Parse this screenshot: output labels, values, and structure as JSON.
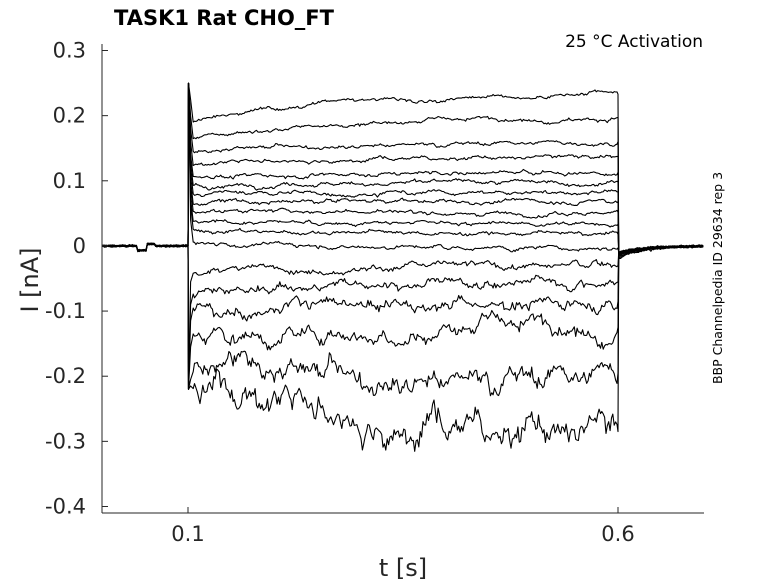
{
  "chart_data": {
    "type": "line",
    "title": "TASK1  Rat  CHO_FT",
    "annotation": "25 °C  Activation",
    "side_note": "BBP Channelpedia ID 29634 rep 3",
    "xlabel": "t [s]",
    "ylabel": "I [nA]",
    "xlim": [
      0.0,
      0.7
    ],
    "ylim": [
      -0.41,
      0.31
    ],
    "x_ticks": [
      0.1,
      0.6
    ],
    "x_tick_labels": [
      "0.1",
      "0.6"
    ],
    "y_ticks": [
      0.3,
      0.2,
      0.1,
      0,
      -0.1,
      -0.2,
      -0.3,
      -0.4
    ],
    "y_tick_labels": [
      "0.3",
      "0.2",
      "0.1",
      "0",
      "-0.1",
      "-0.2",
      "-0.3",
      "-0.4"
    ],
    "grid": false,
    "legend": "none",
    "stimulus_window": [
      0.1,
      0.6
    ],
    "series_steady_state_nA": [
      0.233,
      0.197,
      0.16,
      0.137,
      0.113,
      0.098,
      0.083,
      0.068,
      0.052,
      0.033,
      0.018,
      -0.003,
      -0.03,
      -0.055,
      -0.085,
      -0.125,
      -0.195,
      -0.285
    ],
    "series_onset_nA": [
      0.19,
      0.165,
      0.145,
      0.125,
      0.105,
      0.093,
      0.08,
      0.066,
      0.053,
      0.038,
      0.027,
      0.005,
      -0.04,
      -0.075,
      -0.1,
      -0.14,
      -0.19,
      -0.2
    ]
  }
}
